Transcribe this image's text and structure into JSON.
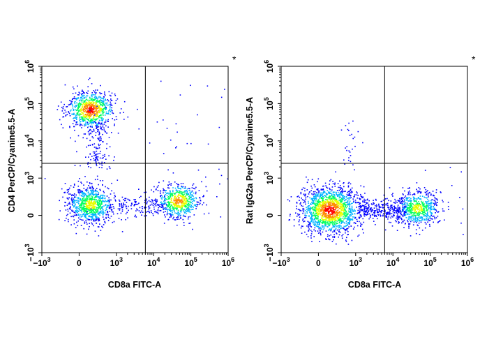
{
  "figure": {
    "panels": [
      {
        "marker": "*",
        "xlabel": "CD8a FITC-A",
        "ylabel": "CD4 PerCP/Cyanine5.5-A",
        "x_ticks": [
          {
            "v": -1000,
            "base": "−10",
            "exp": "3"
          },
          {
            "v": 0,
            "base": "0",
            "exp": ""
          },
          {
            "v": 1000,
            "base": "10",
            "exp": "3"
          },
          {
            "v": 10000,
            "base": "10",
            "exp": "4"
          },
          {
            "v": 100000,
            "base": "10",
            "exp": "5"
          },
          {
            "v": 1000000,
            "base": "10",
            "exp": "6"
          }
        ],
        "y_ticks": [
          {
            "v": -1000,
            "base": "−10",
            "exp": "3"
          },
          {
            "v": 0,
            "base": "0",
            "exp": ""
          },
          {
            "v": 1000,
            "base": "10",
            "exp": "3"
          },
          {
            "v": 10000,
            "base": "10",
            "exp": "4"
          },
          {
            "v": 100000,
            "base": "10",
            "exp": "5"
          },
          {
            "v": 1000000,
            "base": "10",
            "exp": "6"
          }
        ]
      },
      {
        "marker": "*",
        "xlabel": "CD8a FITC-A",
        "ylabel": "Rat IgG2a PerCP/Cyanine5.5-A",
        "x_ticks": [
          {
            "v": -1000,
            "base": "−10",
            "exp": "3"
          },
          {
            "v": 0,
            "base": "0",
            "exp": ""
          },
          {
            "v": 1000,
            "base": "10",
            "exp": "3"
          },
          {
            "v": 10000,
            "base": "10",
            "exp": "4"
          },
          {
            "v": 100000,
            "base": "10",
            "exp": "5"
          },
          {
            "v": 1000000,
            "base": "10",
            "exp": "6"
          }
        ],
        "y_ticks": [
          {
            "v": -1000,
            "base": "−10",
            "exp": "3"
          },
          {
            "v": 0,
            "base": "0",
            "exp": ""
          },
          {
            "v": 1000,
            "base": "10",
            "exp": "3"
          },
          {
            "v": 10000,
            "base": "10",
            "exp": "4"
          },
          {
            "v": 100000,
            "base": "10",
            "exp": "5"
          },
          {
            "v": 1000000,
            "base": "10",
            "exp": "6"
          }
        ]
      }
    ]
  },
  "chart_data": [
    {
      "type": "scatter",
      "xlabel": "CD8a FITC-A",
      "ylabel": "CD4 PerCP/Cyanine5.5-A",
      "x_scale": "biexponential",
      "y_scale": "biexponential",
      "xlim": [
        -1000,
        1000000
      ],
      "ylim": [
        -1000,
        1000000
      ],
      "quadrant_gate": {
        "x": 6000,
        "y": 2500
      },
      "density_colormap": [
        "#0000ff",
        "#00c8ff",
        "#00ff60",
        "#e8ff00",
        "#ff8c00",
        "#ff0000"
      ],
      "populations": [
        {
          "x_center": 300,
          "y_center": 70000,
          "relative_size": 0.32,
          "peak_density": "red"
        },
        {
          "x_center": 300,
          "y_center": 300,
          "relative_size": 0.34,
          "peak_density": "yellow"
        },
        {
          "x_center": 45000,
          "y_center": 400,
          "relative_size": 0.24,
          "peak_density": "orange"
        },
        {
          "x_center": 500,
          "y_center": 8000,
          "relative_size": 0.05,
          "peak_density": "blue"
        },
        {
          "x_center": 5000,
          "y_center": 250,
          "relative_size": 0.05,
          "peak_density": "blue"
        }
      ]
    },
    {
      "type": "scatter",
      "xlabel": "CD8a FITC-A",
      "ylabel": "Rat IgG2a PerCP/Cyanine5.5-A",
      "x_scale": "biexponential",
      "y_scale": "biexponential",
      "xlim": [
        -1000,
        1000000
      ],
      "ylim": [
        -1000,
        1000000
      ],
      "quadrant_gate": {
        "x": 6000,
        "y": 2500
      },
      "density_colormap": [
        "#0000ff",
        "#00c8ff",
        "#00ff60",
        "#e8ff00",
        "#ff8c00",
        "#ff0000"
      ],
      "populations": [
        {
          "x_center": 300,
          "y_center": 150,
          "relative_size": 0.62,
          "peak_density": "red"
        },
        {
          "x_center": 45000,
          "y_center": 200,
          "relative_size": 0.25,
          "peak_density": "yellow"
        },
        {
          "x_center": 5000,
          "y_center": 150,
          "relative_size": 0.12,
          "peak_density": "blue"
        },
        {
          "x_center": 800,
          "y_center": 10000,
          "relative_size": 0.01,
          "peak_density": "blue"
        }
      ]
    }
  ]
}
